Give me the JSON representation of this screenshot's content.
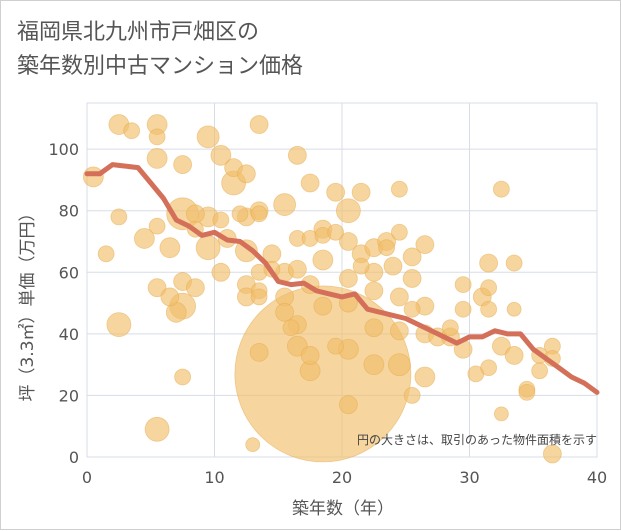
{
  "chart_data": {
    "type": "scatter",
    "title_lines": [
      "福岡県北九州市戸畑区の",
      "築年数別中古マンション価格"
    ],
    "xlabel": "築年数（年）",
    "ylabel": "坪（3.3㎡）単価（万円）",
    "xlim": [
      0,
      40
    ],
    "ylim": [
      0,
      115
    ],
    "x_ticks": [
      0,
      10,
      20,
      30,
      40
    ],
    "y_ticks": [
      0,
      20,
      40,
      60,
      80,
      100
    ],
    "grid": true,
    "annotation": "円の大きさは、取引のあった物件面積を示す",
    "colors": {
      "bubble": "#f1bf6b",
      "bubble_stroke": "#e6a94a",
      "line": "#d4705a",
      "grid": "#d7dde6"
    },
    "series": [
      {
        "type": "bubble",
        "points": [
          {
            "x": 0.5,
            "y": 91,
            "s": 10
          },
          {
            "x": 1.5,
            "y": 66,
            "s": 8
          },
          {
            "x": 2.5,
            "y": 108,
            "s": 10
          },
          {
            "x": 2.5,
            "y": 78,
            "s": 8
          },
          {
            "x": 2.5,
            "y": 43,
            "s": 12
          },
          {
            "x": 3.5,
            "y": 106,
            "s": 8
          },
          {
            "x": 4.5,
            "y": 71,
            "s": 10
          },
          {
            "x": 5.5,
            "y": 108,
            "s": 10
          },
          {
            "x": 5.5,
            "y": 104,
            "s": 8
          },
          {
            "x": 5.5,
            "y": 97,
            "s": 10
          },
          {
            "x": 5.5,
            "y": 75,
            "s": 8
          },
          {
            "x": 5.5,
            "y": 55,
            "s": 9
          },
          {
            "x": 5.5,
            "y": 9,
            "s": 12
          },
          {
            "x": 6.5,
            "y": 68,
            "s": 10
          },
          {
            "x": 6.5,
            "y": 52,
            "s": 9
          },
          {
            "x": 7,
            "y": 47,
            "s": 10
          },
          {
            "x": 7.5,
            "y": 95,
            "s": 9
          },
          {
            "x": 7.5,
            "y": 79,
            "s": 16
          },
          {
            "x": 7.5,
            "y": 57,
            "s": 9
          },
          {
            "x": 7.5,
            "y": 49,
            "s": 13
          },
          {
            "x": 7.5,
            "y": 26,
            "s": 8
          },
          {
            "x": 8.5,
            "y": 79,
            "s": 9
          },
          {
            "x": 8.5,
            "y": 74,
            "s": 8
          },
          {
            "x": 8.5,
            "y": 55,
            "s": 9
          },
          {
            "x": 9.5,
            "y": 104,
            "s": 11
          },
          {
            "x": 9.5,
            "y": 78,
            "s": 10
          },
          {
            "x": 9.5,
            "y": 68,
            "s": 12
          },
          {
            "x": 10.5,
            "y": 98,
            "s": 10
          },
          {
            "x": 10.5,
            "y": 77,
            "s": 8
          },
          {
            "x": 10.5,
            "y": 60,
            "s": 9
          },
          {
            "x": 11,
            "y": 71,
            "s": 9
          },
          {
            "x": 11.5,
            "y": 94,
            "s": 9
          },
          {
            "x": 11.5,
            "y": 89,
            "s": 12
          },
          {
            "x": 12,
            "y": 79,
            "s": 8
          },
          {
            "x": 12.5,
            "y": 92,
            "s": 9
          },
          {
            "x": 12.5,
            "y": 78,
            "s": 9
          },
          {
            "x": 12.5,
            "y": 67,
            "s": 11
          },
          {
            "x": 12.5,
            "y": 56,
            "s": 9
          },
          {
            "x": 12.5,
            "y": 52,
            "s": 9
          },
          {
            "x": 13,
            "y": 4,
            "s": 7
          },
          {
            "x": 13.5,
            "y": 108,
            "s": 9
          },
          {
            "x": 13.5,
            "y": 80,
            "s": 9
          },
          {
            "x": 13.5,
            "y": 79,
            "s": 8
          },
          {
            "x": 13.5,
            "y": 60,
            "s": 8
          },
          {
            "x": 13.5,
            "y": 54,
            "s": 8
          },
          {
            "x": 13.5,
            "y": 52,
            "s": 8
          },
          {
            "x": 13.5,
            "y": 34,
            "s": 9
          },
          {
            "x": 14.5,
            "y": 66,
            "s": 9
          },
          {
            "x": 14.5,
            "y": 61,
            "s": 8
          },
          {
            "x": 15.5,
            "y": 82,
            "s": 11
          },
          {
            "x": 15.5,
            "y": 60,
            "s": 9
          },
          {
            "x": 15.5,
            "y": 52,
            "s": 9
          },
          {
            "x": 15.5,
            "y": 47,
            "s": 9
          },
          {
            "x": 16,
            "y": 42,
            "s": 8
          },
          {
            "x": 16.5,
            "y": 98,
            "s": 9
          },
          {
            "x": 16.5,
            "y": 71,
            "s": 8
          },
          {
            "x": 16.5,
            "y": 61,
            "s": 9
          },
          {
            "x": 16.5,
            "y": 43,
            "s": 9
          },
          {
            "x": 16.5,
            "y": 36,
            "s": 10
          },
          {
            "x": 17.5,
            "y": 89,
            "s": 9
          },
          {
            "x": 17.5,
            "y": 71,
            "s": 8
          },
          {
            "x": 17.5,
            "y": 56,
            "s": 9
          },
          {
            "x": 17.5,
            "y": 33,
            "s": 9
          },
          {
            "x": 17.5,
            "y": 28,
            "s": 10
          },
          {
            "x": 18.5,
            "y": 74,
            "s": 9
          },
          {
            "x": 18.5,
            "y": 72,
            "s": 8
          },
          {
            "x": 18.5,
            "y": 64,
            "s": 10
          },
          {
            "x": 18.5,
            "y": 49,
            "s": 9
          },
          {
            "x": 18.5,
            "y": 27,
            "s": 88
          },
          {
            "x": 19.5,
            "y": 86,
            "s": 9
          },
          {
            "x": 19.5,
            "y": 73,
            "s": 8
          },
          {
            "x": 19.5,
            "y": 36,
            "s": 8
          },
          {
            "x": 20.5,
            "y": 80,
            "s": 12
          },
          {
            "x": 20.5,
            "y": 70,
            "s": 9
          },
          {
            "x": 20.5,
            "y": 58,
            "s": 9
          },
          {
            "x": 20.5,
            "y": 50,
            "s": 9
          },
          {
            "x": 20.5,
            "y": 35,
            "s": 10
          },
          {
            "x": 20.5,
            "y": 17,
            "s": 9
          },
          {
            "x": 21.5,
            "y": 86,
            "s": 9
          },
          {
            "x": 21.5,
            "y": 66,
            "s": 9
          },
          {
            "x": 21.5,
            "y": 62,
            "s": 8
          },
          {
            "x": 22.5,
            "y": 68,
            "s": 9
          },
          {
            "x": 22.5,
            "y": 60,
            "s": 9
          },
          {
            "x": 22.5,
            "y": 54,
            "s": 9
          },
          {
            "x": 22.5,
            "y": 42,
            "s": 9
          },
          {
            "x": 22.5,
            "y": 30,
            "s": 10
          },
          {
            "x": 23.5,
            "y": 70,
            "s": 9
          },
          {
            "x": 23.5,
            "y": 68,
            "s": 8
          },
          {
            "x": 24,
            "y": 62,
            "s": 9
          },
          {
            "x": 24.5,
            "y": 87,
            "s": 8
          },
          {
            "x": 24.5,
            "y": 73,
            "s": 8
          },
          {
            "x": 24.5,
            "y": 52,
            "s": 9
          },
          {
            "x": 24.5,
            "y": 41,
            "s": 9
          },
          {
            "x": 24.5,
            "y": 30,
            "s": 11
          },
          {
            "x": 25.5,
            "y": 65,
            "s": 9
          },
          {
            "x": 25.5,
            "y": 58,
            "s": 9
          },
          {
            "x": 25.5,
            "y": 48,
            "s": 8
          },
          {
            "x": 25.5,
            "y": 20,
            "s": 8
          },
          {
            "x": 26.5,
            "y": 69,
            "s": 9
          },
          {
            "x": 26.5,
            "y": 49,
            "s": 9
          },
          {
            "x": 26.5,
            "y": 40,
            "s": 9
          },
          {
            "x": 26.5,
            "y": 26,
            "s": 10
          },
          {
            "x": 27.5,
            "y": 39,
            "s": 9
          },
          {
            "x": 28.5,
            "y": 42,
            "s": 8
          },
          {
            "x": 28.5,
            "y": 39,
            "s": 9
          },
          {
            "x": 29.5,
            "y": 56,
            "s": 8
          },
          {
            "x": 29.5,
            "y": 48,
            "s": 8
          },
          {
            "x": 29.5,
            "y": 35,
            "s": 9
          },
          {
            "x": 30.5,
            "y": 27,
            "s": 8
          },
          {
            "x": 31,
            "y": 52,
            "s": 9
          },
          {
            "x": 31.5,
            "y": 63,
            "s": 9
          },
          {
            "x": 31.5,
            "y": 55,
            "s": 8
          },
          {
            "x": 31.5,
            "y": 48,
            "s": 8
          },
          {
            "x": 31.5,
            "y": 29,
            "s": 8
          },
          {
            "x": 32.5,
            "y": 87,
            "s": 8
          },
          {
            "x": 32.5,
            "y": 36,
            "s": 9
          },
          {
            "x": 32.5,
            "y": 14,
            "s": 7
          },
          {
            "x": 33.5,
            "y": 63,
            "s": 8
          },
          {
            "x": 33.5,
            "y": 48,
            "s": 7
          },
          {
            "x": 33.5,
            "y": 33,
            "s": 9
          },
          {
            "x": 34.5,
            "y": 22,
            "s": 8
          },
          {
            "x": 34.5,
            "y": 21,
            "s": 8
          },
          {
            "x": 35.5,
            "y": 33,
            "s": 8
          },
          {
            "x": 35.5,
            "y": 28,
            "s": 8
          },
          {
            "x": 36.5,
            "y": 36,
            "s": 8
          },
          {
            "x": 36.5,
            "y": 32,
            "s": 8
          },
          {
            "x": 36.5,
            "y": 1,
            "s": 9
          }
        ]
      },
      {
        "type": "line",
        "x": [
          0,
          1,
          2,
          3,
          4,
          5,
          6,
          7,
          8,
          9,
          10,
          11,
          12,
          13,
          14,
          15,
          16,
          17,
          18,
          19,
          20,
          21,
          22,
          23,
          24,
          25,
          26,
          27,
          28,
          29,
          30,
          31,
          32,
          33,
          34,
          35,
          36,
          37,
          38,
          39,
          40
        ],
        "y": [
          92,
          92,
          95,
          94.5,
          94,
          89,
          84,
          77,
          75,
          72,
          73,
          70.5,
          70,
          67,
          63,
          57,
          56,
          56.5,
          54,
          53,
          52,
          53,
          48,
          47,
          46,
          45,
          43,
          41,
          39,
          37,
          39,
          39,
          41,
          40,
          40,
          35,
          32,
          29,
          26,
          24,
          21
        ]
      }
    ]
  }
}
